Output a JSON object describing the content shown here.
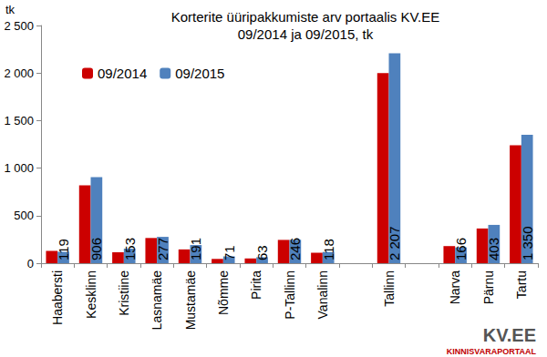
{
  "chart_data": {
    "type": "bar",
    "title": "Korterite üüripakkumiste arv portaalis KV.EE",
    "subtitle": "09/2014 ja 09/2015, tk",
    "ylabel": "tk",
    "categories": [
      "Haabersti",
      "Kesklinn",
      "Kristiine",
      "Lasnamäe",
      "Mustamäe",
      "Nõmme",
      "Pirita",
      "P-Tallinn",
      "Vanalinn",
      null,
      "Tallinn",
      null,
      "Narva",
      "Pärnu",
      "Tartu"
    ],
    "series": [
      {
        "name": "09/2014",
        "color": "#cc0000",
        "values": [
          130,
          820,
          115,
          265,
          145,
          45,
          50,
          245,
          110,
          null,
          2000,
          null,
          180,
          365,
          1240
        ]
      },
      {
        "name": "09/2015",
        "color": "#4f81bd",
        "data_labels": true,
        "values": [
          119,
          906,
          153,
          277,
          191,
          71,
          63,
          246,
          118,
          null,
          2207,
          null,
          166,
          403,
          1350
        ],
        "value_labels": [
          "119",
          "906",
          "153",
          "277",
          "191",
          "71",
          "63",
          "246",
          "118",
          null,
          "2 207",
          null,
          "166",
          "403",
          "1 350"
        ]
      }
    ],
    "ylim": [
      0,
      2500
    ],
    "yticks": [
      0,
      500,
      {
        "value": 1000,
        "label": "1 000"
      },
      {
        "value": 1500,
        "label": "1 500"
      },
      {
        "value": 2000,
        "label": "2 000"
      },
      {
        "value": 2500,
        "label": "2 500"
      }
    ],
    "grid": false,
    "legend": "upper left",
    "source_logo": [
      "KV.EE",
      "KINNISVARAPORTAAL"
    ]
  }
}
